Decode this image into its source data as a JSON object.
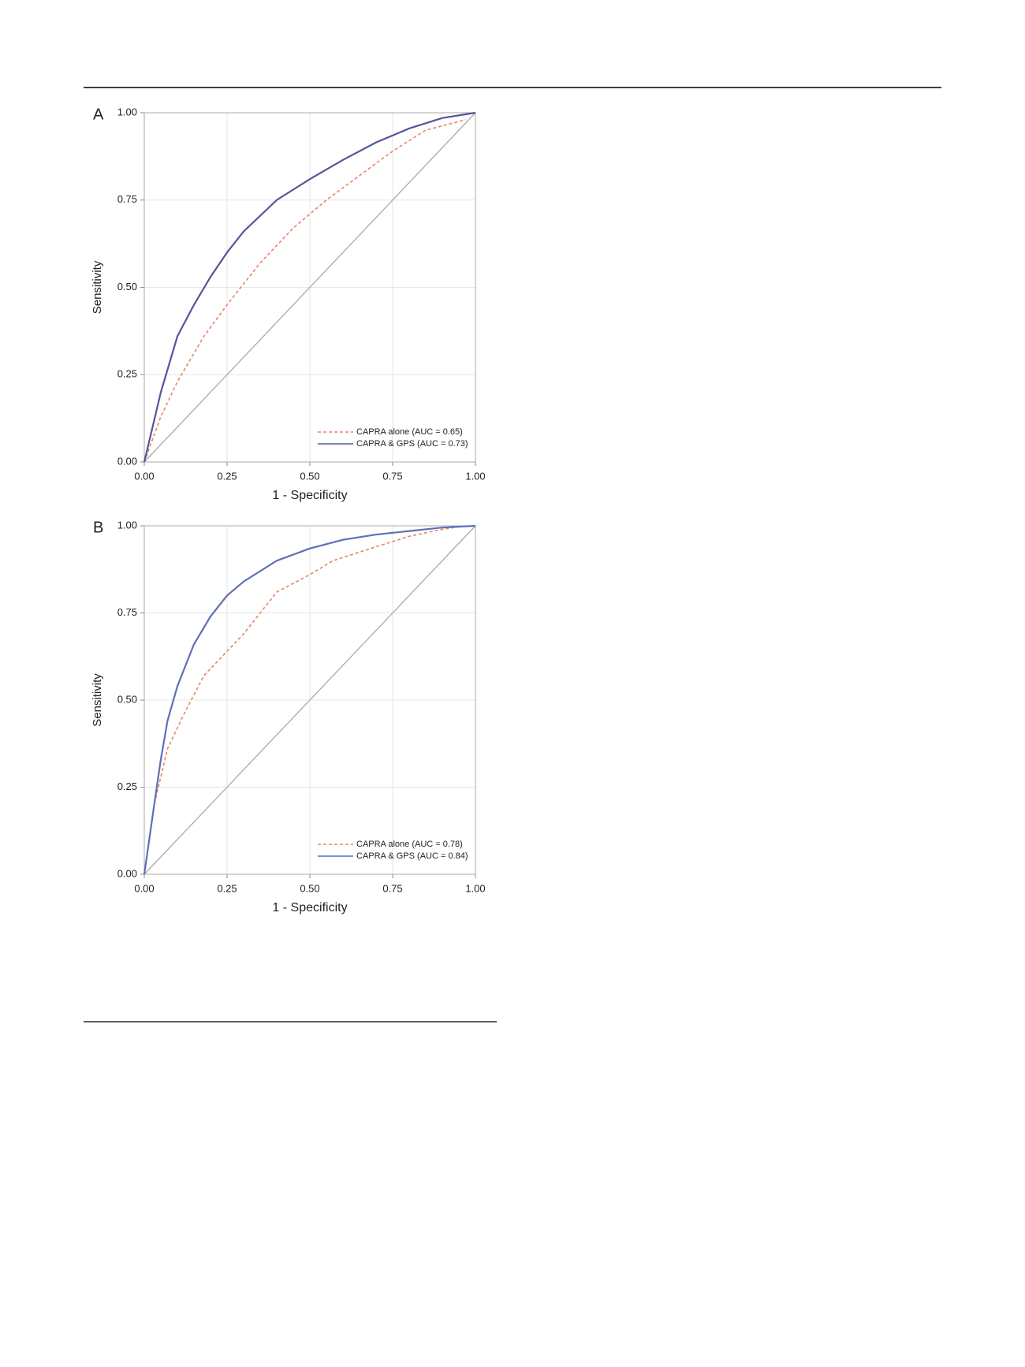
{
  "chart_data": [
    {
      "type": "line",
      "panel_label": "A",
      "xlabel": "1 - Specificity",
      "ylabel": "Sensitivity",
      "xlim": [
        0,
        1
      ],
      "ylim": [
        0,
        1
      ],
      "grid": true,
      "legend": "lower right",
      "xticks": [
        {
          "value": 0,
          "label": "0.00"
        },
        {
          "value": 0.25,
          "label": "0.25"
        },
        {
          "value": 0.5,
          "label": "0.50"
        },
        {
          "value": 0.75,
          "label": "0.75"
        },
        {
          "value": 1,
          "label": "1.00"
        }
      ],
      "yticks": [
        {
          "value": 0,
          "label": "0.00"
        },
        {
          "value": 0.25,
          "label": "0.25"
        },
        {
          "value": 0.5,
          "label": "0.50"
        },
        {
          "value": 0.75,
          "label": "0.75"
        },
        {
          "value": 1,
          "label": "1.00"
        }
      ],
      "series": [
        {
          "name": "CAPRA alone (AUC = 0.65)",
          "color": "#e8836b",
          "dashed": true,
          "x": [
            0,
            0.05,
            0.1,
            0.18,
            0.25,
            0.35,
            0.45,
            0.55,
            0.65,
            0.75,
            0.85,
            0.97
          ],
          "values": [
            0,
            0.13,
            0.23,
            0.36,
            0.45,
            0.57,
            0.67,
            0.75,
            0.82,
            0.89,
            0.95,
            0.98
          ]
        },
        {
          "name": "CAPRA & GPS (AUC = 0.73)",
          "color": "#55559a",
          "dashed": false,
          "x": [
            0,
            0.05,
            0.1,
            0.15,
            0.2,
            0.25,
            0.3,
            0.4,
            0.5,
            0.6,
            0.7,
            0.8,
            0.9,
            1
          ],
          "values": [
            0,
            0.2,
            0.36,
            0.45,
            0.53,
            0.6,
            0.66,
            0.75,
            0.81,
            0.865,
            0.915,
            0.955,
            0.985,
            1
          ]
        }
      ]
    },
    {
      "type": "line",
      "panel_label": "B",
      "xlabel": "1 - Specificity",
      "ylabel": "Sensitivity",
      "xlim": [
        0,
        1
      ],
      "ylim": [
        0,
        1
      ],
      "grid": true,
      "legend": "lower right",
      "xticks": [
        {
          "value": 0,
          "label": "0.00"
        },
        {
          "value": 0.25,
          "label": "0.25"
        },
        {
          "value": 0.5,
          "label": "0.50"
        },
        {
          "value": 0.75,
          "label": "0.75"
        },
        {
          "value": 1,
          "label": "1.00"
        }
      ],
      "yticks": [
        {
          "value": 0,
          "label": "0.00"
        },
        {
          "value": 0.25,
          "label": "0.25"
        },
        {
          "value": 0.5,
          "label": "0.50"
        },
        {
          "value": 0.75,
          "label": "0.75"
        },
        {
          "value": 1,
          "label": "1.00"
        }
      ],
      "series": [
        {
          "name": "CAPRA alone (AUC = 0.78)",
          "color": "#e8836b",
          "dashed": true,
          "x": [
            0,
            0.03,
            0.07,
            0.12,
            0.18,
            0.25,
            0.3,
            0.4,
            0.5,
            0.57,
            0.7,
            0.8,
            0.9,
            0.97
          ],
          "values": [
            0,
            0.2,
            0.36,
            0.46,
            0.57,
            0.64,
            0.69,
            0.81,
            0.86,
            0.9,
            0.94,
            0.97,
            0.99,
            1
          ]
        },
        {
          "name": "CAPRA & GPS (AUC = 0.84)",
          "color": "#5f6fb8",
          "dashed": false,
          "x": [
            0,
            0.03,
            0.05,
            0.07,
            0.1,
            0.15,
            0.2,
            0.25,
            0.3,
            0.4,
            0.5,
            0.6,
            0.7,
            0.8,
            0.9,
            1
          ],
          "values": [
            0,
            0.2,
            0.33,
            0.44,
            0.54,
            0.66,
            0.74,
            0.8,
            0.84,
            0.9,
            0.935,
            0.96,
            0.975,
            0.985,
            0.995,
            1
          ]
        }
      ]
    }
  ]
}
